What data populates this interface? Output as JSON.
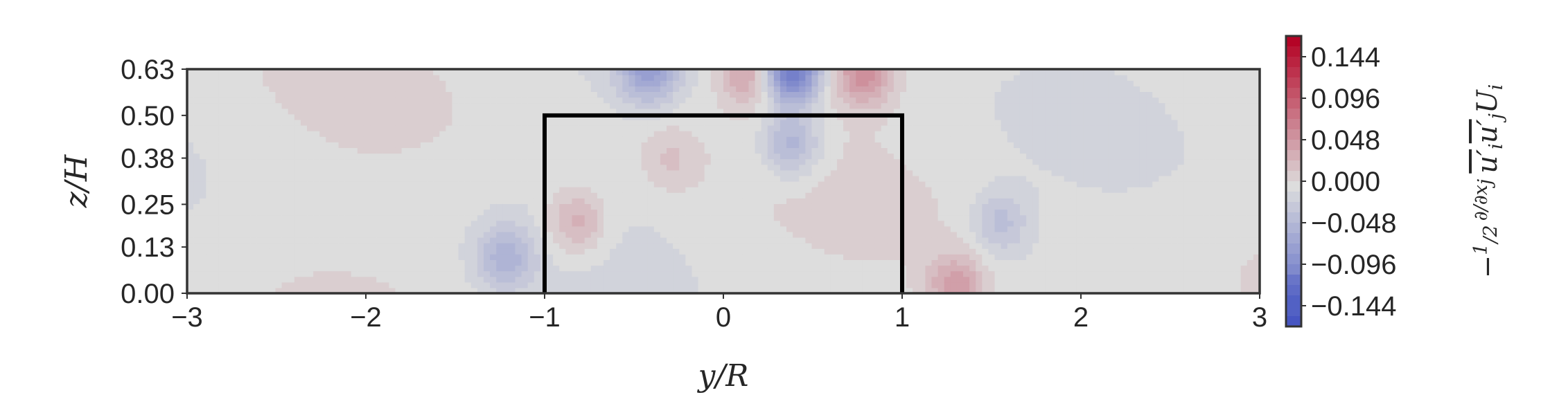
{
  "chart_data": {
    "type": "heatmap",
    "subtype": "filled-contour",
    "title": "",
    "xlabel": "y/R",
    "ylabel": "z/H",
    "xlim": [
      -3,
      3
    ],
    "ylim": [
      0,
      0.63
    ],
    "xticks": [
      -3,
      -2,
      -1,
      0,
      1,
      2,
      3
    ],
    "xtick_labels": [
      "−3",
      "−2",
      "−1",
      "0",
      "1",
      "2",
      "3"
    ],
    "yticks": [
      0.0,
      0.13,
      0.25,
      0.38,
      0.5,
      0.63
    ],
    "ytick_labels": [
      "0.00",
      "0.13",
      "0.25",
      "0.38",
      "0.50",
      "0.63"
    ],
    "colormap": "coolwarm",
    "colorbar": {
      "label_parts": [
        "−",
        "1",
        "2",
        "∂",
        "∂x",
        "j",
        "u′",
        "i",
        "u′",
        "j",
        "U",
        "i"
      ],
      "range": [
        -0.168,
        0.168
      ],
      "ticks": [
        0.144,
        0.096,
        0.048,
        0.0,
        -0.048,
        -0.096,
        -0.144
      ],
      "tick_labels": [
        "0.144",
        "0.096",
        "0.048",
        "0.000",
        "−0.048",
        "−0.096",
        "−0.144"
      ],
      "low_color": "#3b4cc0",
      "mid_color": "#dddddd",
      "high_color": "#b40426"
    },
    "outline": {
      "description": "turbine rotor projection",
      "points": [
        [
          -1,
          0
        ],
        [
          -1,
          0.5
        ],
        [
          1,
          0.5
        ],
        [
          1,
          0
        ]
      ],
      "color": "#000000"
    },
    "features": [
      {
        "y": 0.38,
        "z": 0.63,
        "value": -0.12
      },
      {
        "y": -0.42,
        "z": 0.63,
        "value": -0.07
      },
      {
        "y": 0.14,
        "z": 0.62,
        "value": 0.05
      },
      {
        "y": 0.78,
        "z": 0.62,
        "value": 0.06
      },
      {
        "y": 1.3,
        "z": 0.02,
        "value": 0.05
      },
      {
        "y": -1.22,
        "z": 0.1,
        "value": -0.045
      },
      {
        "y": -0.82,
        "z": 0.2,
        "value": 0.04
      },
      {
        "y": 1.55,
        "z": 0.2,
        "value": -0.035
      },
      {
        "y": 0.38,
        "z": 0.42,
        "value": -0.05
      },
      {
        "y": -0.3,
        "z": 0.38,
        "value": 0.02
      }
    ]
  }
}
